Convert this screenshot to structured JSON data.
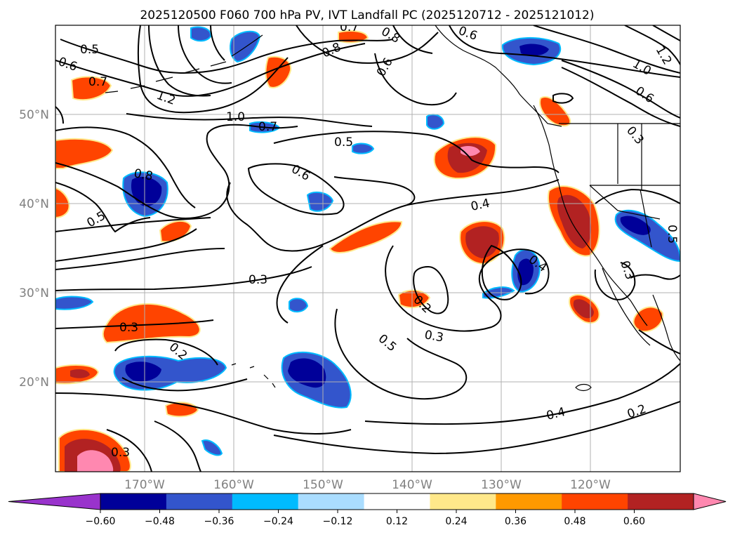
{
  "title": "2025120500 F060 700 hPa PV, IVT Landfall PC (2025120712 - 2025121012)",
  "map": {
    "lat_labels": [
      "50°N",
      "40°N",
      "30°N",
      "20°N"
    ],
    "lon_labels": [
      "170°W",
      "160°W",
      "150°W",
      "140°W",
      "130°W",
      "120°W"
    ],
    "contour_labels": [
      "0.5",
      "0.6",
      "0.7",
      "1.2",
      "0.8",
      "0.8",
      "0.7",
      "0.6",
      "0.6",
      "1.0",
      "1.2",
      "0.6",
      "1.0",
      "0.7",
      "0.5",
      "0.6",
      "0.8",
      "0.5",
      "0.4",
      "0.4",
      "0.3",
      "0.2",
      "0.3",
      "0.3",
      "0.5",
      "0.2",
      "0.4",
      "0.2",
      "0.3",
      "0.5",
      "0.3",
      "0.3"
    ]
  },
  "colorbar": {
    "ticks": [
      "−0.60",
      "−0.48",
      "−0.36",
      "−0.24",
      "−0.12",
      "0.12",
      "0.24",
      "0.36",
      "0.48",
      "0.60"
    ],
    "colors": [
      "#9933cc",
      "#000099",
      "#3355cc",
      "#00bbff",
      "#aaddff",
      "#ffffff",
      "#ffe88a",
      "#ff9900",
      "#ff4400",
      "#b22222",
      "#ff88b0"
    ]
  }
}
